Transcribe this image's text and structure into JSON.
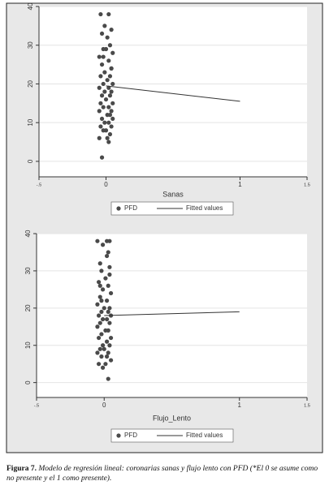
{
  "chart_data": [
    {
      "type": "scatter",
      "xlabel": "Sanas",
      "xlim": [
        -0.5,
        1.5
      ],
      "xticks": [
        {
          "value": -0.5,
          "label": "-.5"
        },
        0,
        1,
        1.5
      ],
      "ylim": [
        -4,
        40
      ],
      "yticks": [
        0,
        10,
        20,
        30,
        40
      ],
      "grid": true,
      "series": [
        {
          "name": "PFD",
          "color": "#4a4a4a",
          "x": [
            -0.04,
            0.02,
            -0.01,
            0.04,
            -0.03,
            0.01,
            0.03,
            -0.02,
            0.0,
            0.05,
            -0.05,
            0.02,
            -0.03,
            0.04,
            -0.01,
            0.03,
            -0.04,
            0.01,
            0.05,
            -0.02,
            0.02,
            -0.05,
            0.04,
            -0.01,
            0.03,
            -0.03,
            0.0,
            0.05,
            -0.04,
            0.02,
            -0.02,
            0.04,
            -0.05,
            0.01,
            0.03,
            -0.03,
            0.05,
            -0.01,
            0.02,
            -0.04,
            0.04,
            -0.02,
            0.0,
            0.03,
            -0.05,
            0.01,
            0.02,
            -0.03,
            0.04,
            -0.02
          ],
          "values": [
            38,
            38,
            35,
            34,
            33,
            32,
            30,
            29,
            29,
            28,
            27,
            26,
            25,
            24,
            23,
            22,
            22,
            21,
            20,
            20,
            19,
            19,
            18,
            18,
            17,
            17,
            16,
            15,
            15,
            14,
            14,
            13,
            13,
            12,
            12,
            11,
            11,
            10,
            10,
            9,
            9,
            8,
            8,
            7,
            6,
            6,
            5,
            1,
            24,
            27
          ]
        },
        {
          "name": "Fitted values",
          "type": "line",
          "color": "#333333",
          "x": [
            0,
            1
          ],
          "values": [
            19.5,
            15.5
          ]
        }
      ]
    },
    {
      "type": "scatter",
      "xlabel": "Flujo_Lento",
      "xlim": [
        -0.5,
        1.5
      ],
      "xticks": [
        {
          "value": -0.5,
          "label": "-.5"
        },
        0,
        1,
        1.5
      ],
      "ylim": [
        -4,
        40
      ],
      "yticks": [
        0,
        10,
        20,
        30,
        40
      ],
      "grid": true,
      "series": [
        {
          "name": "PFD",
          "color": "#4a4a4a",
          "x": [
            -0.05,
            0.02,
            0.04,
            -0.01,
            0.03,
            0.02,
            -0.03,
            0.04,
            -0.02,
            0.01,
            -0.04,
            0.03,
            -0.01,
            0.05,
            -0.03,
            0.02,
            -0.05,
            0.04,
            0.0,
            -0.02,
            0.03,
            -0.04,
            0.05,
            -0.01,
            0.02,
            -0.03,
            0.04,
            -0.05,
            0.01,
            0.03,
            -0.02,
            0.05,
            -0.04,
            0.02,
            -0.01,
            0.04,
            -0.03,
            0.0,
            0.03,
            -0.05,
            0.02,
            -0.02,
            0.05,
            -0.04,
            0.01,
            -0.01,
            0.03,
            -0.03,
            0.04,
            -0.02
          ],
          "values": [
            38,
            38,
            38,
            37,
            35,
            34,
            32,
            31,
            30,
            28,
            27,
            26,
            25,
            24,
            23,
            22,
            21,
            20,
            20,
            19,
            19,
            18,
            18,
            17,
            17,
            16,
            16,
            15,
            14,
            14,
            13,
            12,
            12,
            11,
            10,
            10,
            9,
            9,
            8,
            8,
            7,
            7,
            6,
            5,
            5,
            4,
            1,
            26,
            29,
            22
          ]
        },
        {
          "name": "Fitted values",
          "type": "line",
          "color": "#333333",
          "x": [
            0,
            1
          ],
          "values": [
            18,
            19
          ]
        }
      ]
    }
  ],
  "caption": {
    "label": "Figura 7.",
    "text": "Modelo de regresión lineal: coronarias sanas y flujo lento con PFD (*El 0 se asume como no presente y el 1 como presente)."
  }
}
